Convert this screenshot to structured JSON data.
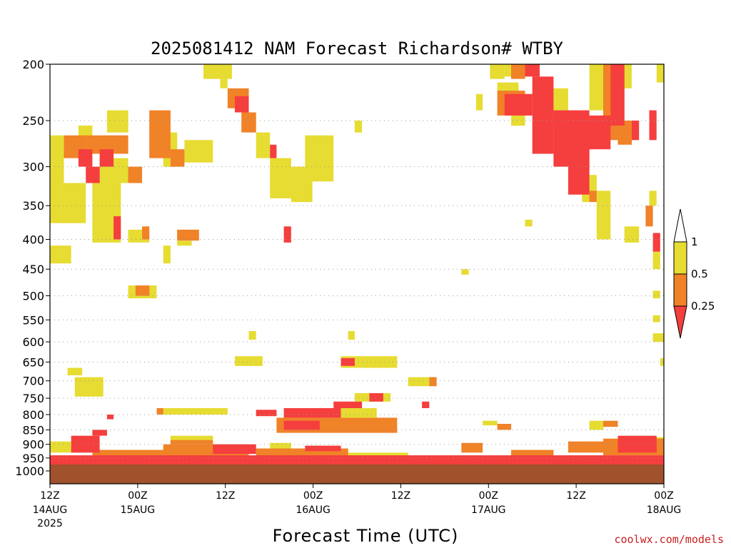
{
  "chart_data": {
    "type": "heatmap",
    "title": "2025081412 NAM Forecast Richardson# WTBY",
    "xlabel": "Forecast Time (UTC)",
    "ylabel": "",
    "x_unit": "forecast hour",
    "xlim": [
      0,
      84
    ],
    "y_ticks": [
      200,
      250,
      300,
      350,
      400,
      450,
      500,
      550,
      600,
      650,
      700,
      750,
      800,
      850,
      900,
      950,
      1000
    ],
    "ylim": [
      200,
      1000
    ],
    "y_scale": "log",
    "x_ticks": [
      {
        "hour": 0,
        "label": "12Z",
        "date": "14AUG",
        "year": "2025"
      },
      {
        "hour": 12,
        "label": "00Z",
        "date": "15AUG",
        "year": ""
      },
      {
        "hour": 24,
        "label": "12Z",
        "date": "",
        "year": ""
      },
      {
        "hour": 36,
        "label": "00Z",
        "date": "16AUG",
        "year": ""
      },
      {
        "hour": 48,
        "label": "12Z",
        "date": "",
        "year": ""
      },
      {
        "hour": 60,
        "label": "00Z",
        "date": "17AUG",
        "year": ""
      },
      {
        "hour": 72,
        "label": "12Z",
        "date": "",
        "year": ""
      },
      {
        "hour": 84,
        "label": "00Z",
        "date": "18AUG",
        "year": ""
      }
    ],
    "grid": "dotted horizontal at y ticks",
    "legend": {
      "position": "right",
      "labels": [
        "1",
        "0.5",
        "0.25"
      ],
      "bins": [
        {
          "range": "<0.25",
          "color": "#f53e3e"
        },
        {
          "range": "0.25-0.5",
          "color": "#f08228"
        },
        {
          "range": "0.5-1",
          "color": "#e6dc32"
        },
        {
          "range": ">1",
          "color": "#ffffff"
        }
      ]
    },
    "ground_color": "#a0522d",
    "cells": [
      {
        "h0": 21.0,
        "h1": 24.9,
        "p0": 200,
        "p1": 212,
        "bin": "y"
      },
      {
        "h0": 23.3,
        "h1": 24.3,
        "p0": 212,
        "p1": 220,
        "bin": "y"
      },
      {
        "h0": 24.3,
        "h1": 27.2,
        "p0": 220,
        "p1": 238,
        "bin": "o"
      },
      {
        "h0": 25.3,
        "h1": 27.2,
        "p0": 227,
        "p1": 242,
        "bin": "r"
      },
      {
        "h0": 26.2,
        "h1": 28.2,
        "p0": 242,
        "p1": 262,
        "bin": "o"
      },
      {
        "h0": 28.2,
        "h1": 30.1,
        "p0": 262,
        "p1": 290,
        "bin": "y"
      },
      {
        "h0": 30.1,
        "h1": 31.0,
        "p0": 275,
        "p1": 290,
        "bin": "r"
      },
      {
        "h0": 30.1,
        "h1": 33.0,
        "p0": 290,
        "p1": 340,
        "bin": "y"
      },
      {
        "h0": 33.0,
        "h1": 35.9,
        "p0": 300,
        "p1": 345,
        "bin": "y"
      },
      {
        "h0": 34.9,
        "h1": 38.8,
        "p0": 265,
        "p1": 318,
        "bin": "y"
      },
      {
        "h0": 0.0,
        "h1": 1.9,
        "p0": 265,
        "p1": 375,
        "bin": "y"
      },
      {
        "h0": 1.9,
        "h1": 4.9,
        "p0": 265,
        "p1": 290,
        "bin": "o"
      },
      {
        "h0": 1.9,
        "h1": 4.9,
        "p0": 320,
        "p1": 375,
        "bin": "y"
      },
      {
        "h0": 3.9,
        "h1": 5.8,
        "p0": 255,
        "p1": 280,
        "bin": "y"
      },
      {
        "h0": 4.9,
        "h1": 10.7,
        "p0": 265,
        "p1": 285,
        "bin": "o"
      },
      {
        "h0": 3.9,
        "h1": 5.8,
        "p0": 280,
        "p1": 300,
        "bin": "r"
      },
      {
        "h0": 4.9,
        "h1": 6.8,
        "p0": 300,
        "p1": 320,
        "bin": "r"
      },
      {
        "h0": 6.8,
        "h1": 8.7,
        "p0": 280,
        "p1": 300,
        "bin": "r"
      },
      {
        "h0": 6.8,
        "h1": 10.7,
        "p0": 290,
        "p1": 320,
        "bin": "y"
      },
      {
        "h0": 7.8,
        "h1": 10.7,
        "p0": 240,
        "p1": 262,
        "bin": "y"
      },
      {
        "h0": 5.8,
        "h1": 9.7,
        "p0": 320,
        "p1": 405,
        "bin": "y"
      },
      {
        "h0": 8.7,
        "h1": 9.7,
        "p0": 365,
        "p1": 400,
        "bin": "r"
      },
      {
        "h0": 10.7,
        "h1": 12.6,
        "p0": 300,
        "p1": 320,
        "bin": "o"
      },
      {
        "h0": 13.6,
        "h1": 16.5,
        "p0": 240,
        "p1": 290,
        "bin": "o"
      },
      {
        "h0": 15.5,
        "h1": 17.4,
        "p0": 262,
        "p1": 300,
        "bin": "y"
      },
      {
        "h0": 16.5,
        "h1": 18.4,
        "p0": 280,
        "p1": 300,
        "bin": "o"
      },
      {
        "h0": 18.4,
        "h1": 22.3,
        "p0": 270,
        "p1": 295,
        "bin": "y"
      },
      {
        "h0": 10.7,
        "h1": 13.6,
        "p0": 385,
        "p1": 405,
        "bin": "y"
      },
      {
        "h0": 12.6,
        "h1": 13.6,
        "p0": 380,
        "p1": 400,
        "bin": "o"
      },
      {
        "h0": 17.4,
        "h1": 20.4,
        "p0": 385,
        "p1": 402,
        "bin": "o"
      },
      {
        "h0": 17.4,
        "h1": 19.4,
        "p0": 402,
        "p1": 410,
        "bin": "y"
      },
      {
        "h0": 32.0,
        "h1": 33.0,
        "p0": 380,
        "p1": 405,
        "bin": "r"
      },
      {
        "h0": 0.0,
        "h1": 2.9,
        "p0": 410,
        "p1": 440,
        "bin": "y"
      },
      {
        "h0": 15.5,
        "h1": 16.5,
        "p0": 410,
        "p1": 440,
        "bin": "y"
      },
      {
        "h0": 10.7,
        "h1": 14.6,
        "p0": 480,
        "p1": 505,
        "bin": "y"
      },
      {
        "h0": 11.7,
        "h1": 13.6,
        "p0": 480,
        "p1": 500,
        "bin": "o"
      },
      {
        "h0": 25.3,
        "h1": 29.1,
        "p0": 635,
        "p1": 660,
        "bin": "y"
      },
      {
        "h0": 27.2,
        "h1": 28.2,
        "p0": 575,
        "p1": 595,
        "bin": "y"
      },
      {
        "h0": 39.8,
        "h1": 47.5,
        "p0": 635,
        "p1": 665,
        "bin": "y"
      },
      {
        "h0": 39.8,
        "h1": 41.7,
        "p0": 640,
        "p1": 660,
        "bin": "r"
      },
      {
        "h0": 40.8,
        "h1": 41.7,
        "p0": 575,
        "p1": 595,
        "bin": "y"
      },
      {
        "h0": 2.4,
        "h1": 4.4,
        "p0": 665,
        "p1": 685,
        "bin": "y"
      },
      {
        "h0": 3.4,
        "h1": 7.3,
        "p0": 690,
        "p1": 745,
        "bin": "y"
      },
      {
        "h0": 49.0,
        "h1": 52.9,
        "p0": 690,
        "p1": 715,
        "bin": "y"
      },
      {
        "h0": 51.9,
        "h1": 52.9,
        "p0": 690,
        "p1": 715,
        "bin": "o"
      },
      {
        "h0": 41.7,
        "h1": 46.6,
        "p0": 735,
        "p1": 760,
        "bin": "y"
      },
      {
        "h0": 43.7,
        "h1": 45.6,
        "p0": 735,
        "p1": 760,
        "bin": "r"
      },
      {
        "h0": 38.8,
        "h1": 42.7,
        "p0": 760,
        "p1": 780,
        "bin": "r"
      },
      {
        "h0": 50.9,
        "h1": 51.9,
        "p0": 760,
        "p1": 780,
        "bin": "r"
      },
      {
        "h0": 14.6,
        "h1": 24.3,
        "p0": 780,
        "p1": 800,
        "bin": "y"
      },
      {
        "h0": 14.6,
        "h1": 15.5,
        "p0": 780,
        "p1": 800,
        "bin": "o"
      },
      {
        "h0": 28.2,
        "h1": 31.0,
        "p0": 785,
        "p1": 805,
        "bin": "r"
      },
      {
        "h0": 32.0,
        "h1": 39.8,
        "p0": 780,
        "p1": 810,
        "bin": "r"
      },
      {
        "h0": 39.8,
        "h1": 44.7,
        "p0": 780,
        "p1": 810,
        "bin": "y"
      },
      {
        "h0": 31.0,
        "h1": 47.5,
        "p0": 810,
        "p1": 860,
        "bin": "o"
      },
      {
        "h0": 32.0,
        "h1": 36.9,
        "p0": 820,
        "p1": 850,
        "bin": "r"
      },
      {
        "h0": 7.8,
        "h1": 8.7,
        "p0": 800,
        "p1": 815,
        "bin": "r"
      },
      {
        "h0": 5.8,
        "h1": 7.8,
        "p0": 850,
        "p1": 870,
        "bin": "r"
      },
      {
        "h0": 59.2,
        "h1": 61.2,
        "p0": 820,
        "p1": 835,
        "bin": "y"
      },
      {
        "h0": 61.2,
        "h1": 63.1,
        "p0": 830,
        "p1": 850,
        "bin": "o"
      },
      {
        "h0": 73.8,
        "h1": 75.7,
        "p0": 820,
        "p1": 850,
        "bin": "y"
      },
      {
        "h0": 75.7,
        "h1": 77.7,
        "p0": 820,
        "p1": 840,
        "bin": "o"
      },
      {
        "h0": 0.0,
        "h1": 4.9,
        "p0": 890,
        "p1": 930,
        "bin": "y"
      },
      {
        "h0": 2.9,
        "h1": 6.8,
        "p0": 870,
        "p1": 930,
        "bin": "r"
      },
      {
        "h0": 16.5,
        "h1": 22.3,
        "p0": 870,
        "p1": 900,
        "bin": "y"
      },
      {
        "h0": 16.5,
        "h1": 22.3,
        "p0": 885,
        "p1": 900,
        "bin": "o"
      },
      {
        "h0": 0.0,
        "h1": 84.0,
        "p0": 940,
        "p1": 975,
        "bin": "r"
      },
      {
        "h0": 15.5,
        "h1": 27.2,
        "p0": 900,
        "p1": 945,
        "bin": "o"
      },
      {
        "h0": 22.3,
        "h1": 28.2,
        "p0": 900,
        "p1": 935,
        "bin": "r"
      },
      {
        "h0": 17.4,
        "h1": 25.3,
        "p0": 910,
        "p1": 930,
        "bin": "y"
      },
      {
        "h0": 5.8,
        "h1": 16.5,
        "p0": 920,
        "p1": 945,
        "bin": "o"
      },
      {
        "h0": 28.2,
        "h1": 40.8,
        "p0": 915,
        "p1": 945,
        "bin": "o"
      },
      {
        "h0": 30.1,
        "h1": 33.0,
        "p0": 895,
        "p1": 915,
        "bin": "y"
      },
      {
        "h0": 34.9,
        "h1": 39.8,
        "p0": 905,
        "p1": 925,
        "bin": "r"
      },
      {
        "h0": 40.8,
        "h1": 49.0,
        "p0": 930,
        "p1": 950,
        "bin": "y"
      },
      {
        "h0": 56.3,
        "h1": 59.2,
        "p0": 895,
        "p1": 930,
        "bin": "o"
      },
      {
        "h0": 56.3,
        "h1": 58.3,
        "p0": 905,
        "p1": 920,
        "bin": "y"
      },
      {
        "h0": 63.1,
        "h1": 68.9,
        "p0": 920,
        "p1": 945,
        "bin": "o"
      },
      {
        "h0": 70.9,
        "h1": 75.7,
        "p0": 890,
        "p1": 930,
        "bin": "o"
      },
      {
        "h0": 70.9,
        "h1": 72.8,
        "p0": 895,
        "p1": 910,
        "bin": "y"
      },
      {
        "h0": 75.7,
        "h1": 84.0,
        "p0": 880,
        "p1": 940,
        "bin": "o"
      },
      {
        "h0": 77.7,
        "h1": 83.0,
        "p0": 870,
        "p1": 930,
        "bin": "r"
      },
      {
        "h0": 79.6,
        "h1": 84.0,
        "p0": 875,
        "p1": 900,
        "bin": "y"
      },
      {
        "h0": 62.2,
        "h1": 63.1,
        "p0": 200,
        "p1": 210,
        "bin": "y"
      },
      {
        "h0": 63.1,
        "h1": 65.0,
        "p0": 200,
        "p1": 212,
        "bin": "o"
      },
      {
        "h0": 65.0,
        "h1": 67.0,
        "p0": 200,
        "p1": 210,
        "bin": "r"
      },
      {
        "h0": 60.2,
        "h1": 62.2,
        "p0": 200,
        "p1": 212,
        "bin": "y"
      },
      {
        "h0": 61.2,
        "h1": 64.1,
        "p0": 215,
        "p1": 230,
        "bin": "y"
      },
      {
        "h0": 61.2,
        "h1": 65.0,
        "p0": 222,
        "p1": 245,
        "bin": "o"
      },
      {
        "h0": 62.2,
        "h1": 66.0,
        "p0": 225,
        "p1": 245,
        "bin": "r"
      },
      {
        "h0": 63.1,
        "h1": 65.0,
        "p0": 245,
        "p1": 255,
        "bin": "y"
      },
      {
        "h0": 66.0,
        "h1": 68.9,
        "p0": 210,
        "p1": 285,
        "bin": "r"
      },
      {
        "h0": 68.9,
        "h1": 70.9,
        "p0": 220,
        "p1": 240,
        "bin": "y"
      },
      {
        "h0": 68.9,
        "h1": 73.8,
        "p0": 240,
        "p1": 300,
        "bin": "r"
      },
      {
        "h0": 70.9,
        "h1": 73.8,
        "p0": 280,
        "p1": 335,
        "bin": "r"
      },
      {
        "h0": 71.8,
        "h1": 76.7,
        "p0": 245,
        "p1": 280,
        "bin": "r"
      },
      {
        "h0": 73.8,
        "h1": 75.7,
        "p0": 200,
        "p1": 240,
        "bin": "y"
      },
      {
        "h0": 75.7,
        "h1": 77.7,
        "p0": 200,
        "p1": 270,
        "bin": "o"
      },
      {
        "h0": 76.7,
        "h1": 78.6,
        "p0": 200,
        "p1": 255,
        "bin": "r"
      },
      {
        "h0": 78.6,
        "h1": 79.6,
        "p0": 200,
        "p1": 220,
        "bin": "y"
      },
      {
        "h0": 77.7,
        "h1": 79.6,
        "p0": 250,
        "p1": 275,
        "bin": "o"
      },
      {
        "h0": 79.6,
        "h1": 80.6,
        "p0": 250,
        "p1": 270,
        "bin": "r"
      },
      {
        "h0": 72.8,
        "h1": 74.8,
        "p0": 310,
        "p1": 345,
        "bin": "y"
      },
      {
        "h0": 74.8,
        "h1": 76.7,
        "p0": 330,
        "p1": 400,
        "bin": "y"
      },
      {
        "h0": 73.8,
        "h1": 74.8,
        "p0": 330,
        "p1": 345,
        "bin": "o"
      },
      {
        "h0": 78.6,
        "h1": 80.6,
        "p0": 380,
        "p1": 405,
        "bin": "y"
      },
      {
        "h0": 82.0,
        "h1": 83.0,
        "p0": 240,
        "p1": 270,
        "bin": "r"
      },
      {
        "h0": 83.0,
        "h1": 84.0,
        "p0": 200,
        "p1": 215,
        "bin": "y"
      },
      {
        "h0": 82.0,
        "h1": 83.0,
        "p0": 330,
        "p1": 350,
        "bin": "y"
      },
      {
        "h0": 81.5,
        "h1": 82.5,
        "p0": 350,
        "p1": 380,
        "bin": "o"
      },
      {
        "h0": 82.5,
        "h1": 83.5,
        "p0": 390,
        "p1": 420,
        "bin": "r"
      },
      {
        "h0": 82.5,
        "h1": 83.5,
        "p0": 420,
        "p1": 450,
        "bin": "y"
      },
      {
        "h0": 82.5,
        "h1": 83.5,
        "p0": 490,
        "p1": 505,
        "bin": "y"
      },
      {
        "h0": 82.5,
        "h1": 83.5,
        "p0": 540,
        "p1": 555,
        "bin": "y"
      },
      {
        "h0": 82.5,
        "h1": 84.0,
        "p0": 580,
        "p1": 600,
        "bin": "y"
      },
      {
        "h0": 83.5,
        "h1": 84.0,
        "p0": 640,
        "p1": 660,
        "bin": "y"
      },
      {
        "h0": 76.7,
        "h1": 77.7,
        "p0": 210,
        "p1": 225,
        "bin": "o"
      },
      {
        "h0": 58.3,
        "h1": 59.2,
        "p0": 225,
        "p1": 240,
        "bin": "y"
      },
      {
        "h0": 41.7,
        "h1": 42.7,
        "p0": 250,
        "p1": 262,
        "bin": "y"
      },
      {
        "h0": 56.3,
        "h1": 57.3,
        "p0": 450,
        "p1": 460,
        "bin": "y"
      },
      {
        "h0": 65.0,
        "h1": 66.0,
        "p0": 370,
        "p1": 380,
        "bin": "y"
      }
    ]
  },
  "credit": "coolwx.com/models"
}
